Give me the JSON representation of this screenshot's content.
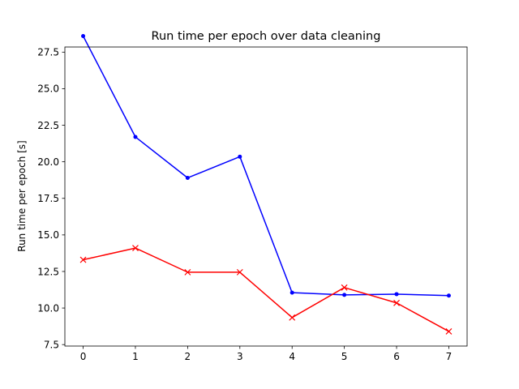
{
  "chart_data": {
    "type": "line",
    "title": "Run time per epoch over data cleaning",
    "xlabel": "",
    "ylabel": "Run time per epoch [s]",
    "x": [
      0,
      1,
      2,
      3,
      4,
      5,
      6,
      7
    ],
    "x_ticks": [
      "0",
      "1",
      "2",
      "3",
      "4",
      "5",
      "6",
      "7"
    ],
    "xlim": [
      -0.35,
      7.35
    ],
    "ylim": [
      7.4,
      27.85
    ],
    "y_ticks": [
      7.5,
      10.0,
      12.5,
      15.0,
      17.5,
      20.0,
      22.5,
      25.0,
      27.5
    ],
    "y_tick_labels": [
      "7.5",
      "10.0",
      "12.5",
      "15.0",
      "17.5",
      "20.0",
      "22.5",
      "25.0",
      "27.5"
    ],
    "grid": false,
    "legend": "none",
    "series": [
      {
        "values": [
          28.6,
          21.7,
          18.9,
          20.35,
          11.05,
          10.9,
          10.95,
          10.85
        ],
        "color": "#0000ff",
        "marker": "dot"
      },
      {
        "values": [
          13.3,
          14.1,
          12.45,
          12.45,
          9.35,
          11.4,
          10.35,
          8.4
        ],
        "color": "#ff0000",
        "marker": "x"
      }
    ]
  }
}
